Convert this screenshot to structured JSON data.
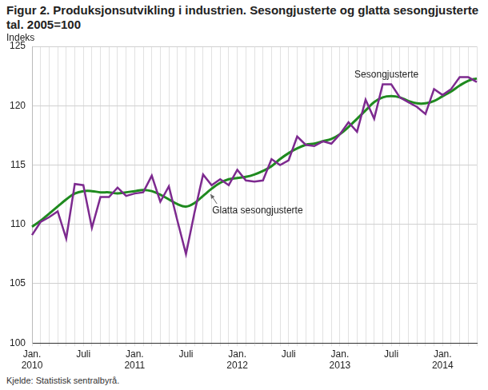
{
  "chart_data": {
    "type": "line",
    "title": "Figur 2. Produksjonsutvikling i industrien. Sesongjusterte og glatta sesongjusterte tal. 2005=100",
    "y_label": "Indeks",
    "source": "Kjelde: Statistisk sentralbyrå.",
    "categories": [
      [
        "Jan.",
        "2010"
      ],
      null,
      null,
      null,
      null,
      null,
      "Juli",
      null,
      null,
      null,
      null,
      null,
      [
        "Jan.",
        "2011"
      ],
      null,
      null,
      null,
      null,
      null,
      "Juli",
      null,
      null,
      null,
      null,
      null,
      [
        "Jan.",
        "2012"
      ],
      null,
      null,
      null,
      null,
      null,
      "Juli",
      null,
      null,
      null,
      null,
      null,
      [
        "Jan.",
        "2013"
      ],
      null,
      null,
      null,
      null,
      null,
      "Juli",
      null,
      null,
      null,
      null,
      null,
      [
        "Jan.",
        "2014"
      ],
      null,
      null,
      null,
      null
    ],
    "series": [
      {
        "name": "Sesongjusterte",
        "color": "#7d2a8f",
        "values": [
          109.1,
          110.2,
          110.6,
          111.1,
          108.8,
          113.4,
          113.3,
          109.7,
          112.3,
          112.3,
          113.1,
          112.4,
          112.6,
          112.7,
          114.1,
          111.9,
          113.2,
          110.3,
          107.5,
          111.0,
          114.2,
          113.3,
          113.8,
          113.3,
          114.6,
          113.7,
          113.6,
          113.7,
          115.5,
          115.0,
          115.4,
          117.4,
          116.7,
          116.6,
          117.0,
          116.8,
          117.6,
          118.6,
          117.8,
          120.5,
          118.9,
          121.8,
          121.8,
          120.7,
          120.3,
          119.9,
          119.3,
          121.4,
          120.9,
          121.4,
          122.4,
          122.4,
          122.0
        ]
      },
      {
        "name": "Glatta sesongjusterte",
        "color": "#1f8a1f",
        "values": [
          109.8,
          110.3,
          110.9,
          111.5,
          112.1,
          112.6,
          112.8,
          112.8,
          112.7,
          112.7,
          112.6,
          112.7,
          112.8,
          112.9,
          112.8,
          112.5,
          112.1,
          111.7,
          111.5,
          111.8,
          112.4,
          113.0,
          113.5,
          113.8,
          113.9,
          114.0,
          114.2,
          114.5,
          114.9,
          115.5,
          116.0,
          116.4,
          116.7,
          116.8,
          117.0,
          117.2,
          117.6,
          118.2,
          118.9,
          119.6,
          120.3,
          120.7,
          120.8,
          120.7,
          120.4,
          120.2,
          120.2,
          120.4,
          120.8,
          121.2,
          121.7,
          122.1,
          122.3
        ]
      }
    ],
    "ylim": [
      100,
      125
    ],
    "yticks": [
      100,
      105,
      110,
      115,
      120,
      125
    ],
    "grid": true
  }
}
